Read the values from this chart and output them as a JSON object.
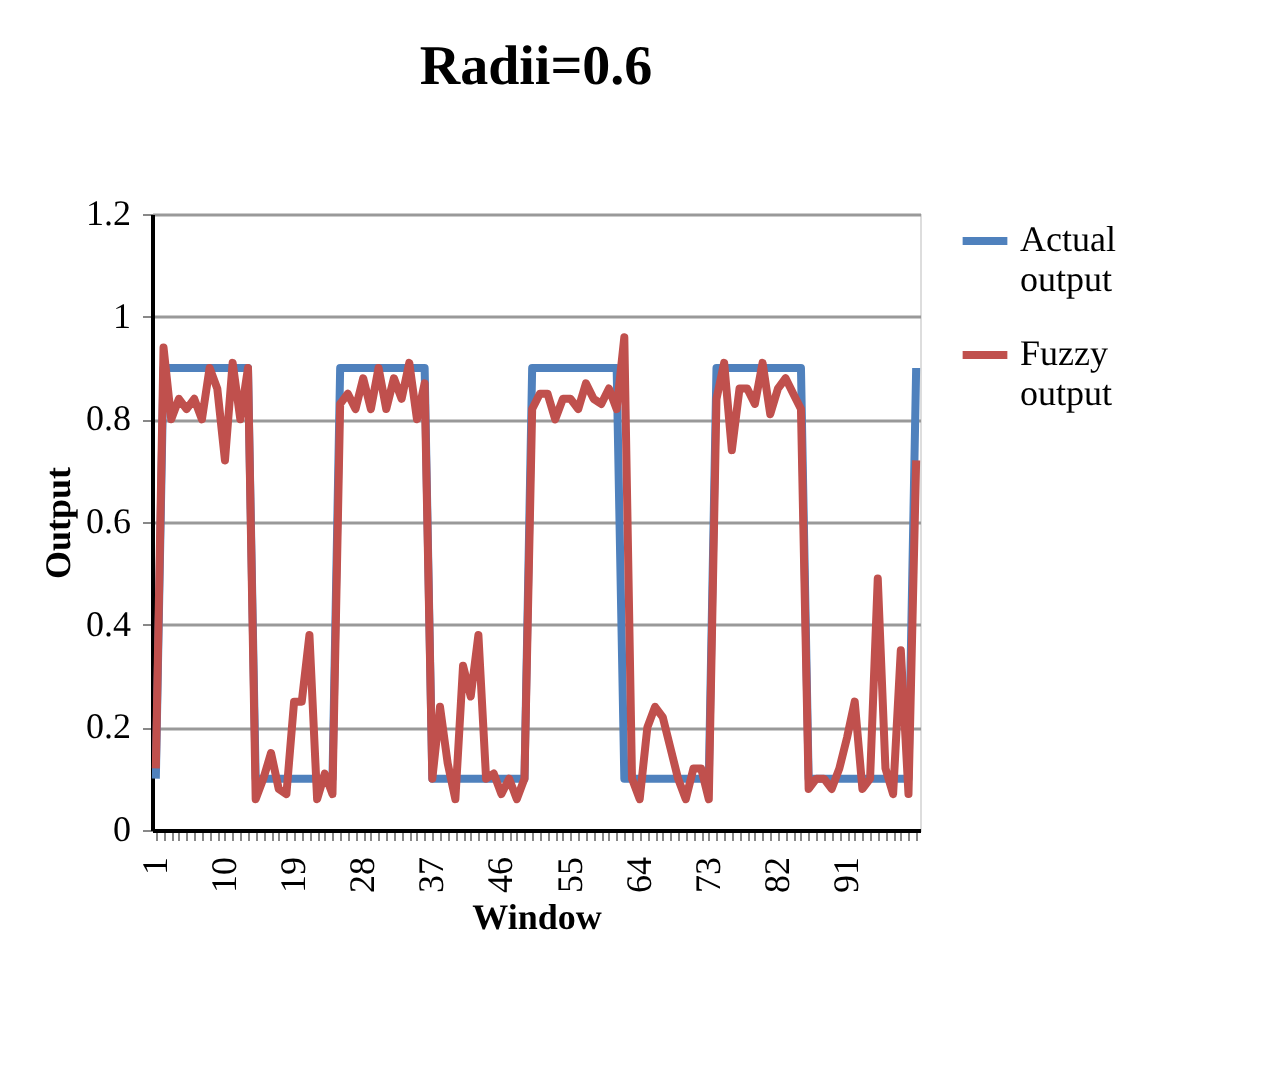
{
  "chart_data": {
    "type": "line",
    "title": "Radii=0.6",
    "xlabel": "Window",
    "ylabel": "Output",
    "categories": [
      "1",
      null,
      null,
      null,
      null,
      null,
      null,
      null,
      null,
      "10",
      null,
      null,
      null,
      null,
      null,
      null,
      null,
      null,
      "19",
      null,
      null,
      null,
      null,
      null,
      null,
      null,
      null,
      "28",
      null,
      null,
      null,
      null,
      null,
      null,
      null,
      null,
      "37",
      null,
      null,
      null,
      null,
      null,
      null,
      null,
      null,
      "46",
      null,
      null,
      null,
      null,
      null,
      null,
      null,
      null,
      "55",
      null,
      null,
      null,
      null,
      null,
      null,
      null,
      null,
      "64",
      null,
      null,
      null,
      null,
      null,
      null,
      null,
      null,
      "73",
      null,
      null,
      null,
      null,
      null,
      null,
      null,
      null,
      "82",
      null,
      null,
      null,
      null,
      null,
      null,
      null,
      null,
      "91",
      null,
      null,
      null,
      null,
      null,
      null,
      null,
      null,
      null
    ],
    "series": [
      {
        "name": "Actual output",
        "color": "#4f81bd",
        "values": [
          0.1,
          0.9,
          0.9,
          0.9,
          0.9,
          0.9,
          0.9,
          0.9,
          0.9,
          0.9,
          0.9,
          0.9,
          0.9,
          0.1,
          0.1,
          0.1,
          0.1,
          0.1,
          0.1,
          0.1,
          0.1,
          0.1,
          0.1,
          0.1,
          0.9,
          0.9,
          0.9,
          0.9,
          0.9,
          0.9,
          0.9,
          0.9,
          0.9,
          0.9,
          0.9,
          0.9,
          0.1,
          0.1,
          0.1,
          0.1,
          0.1,
          0.1,
          0.1,
          0.1,
          0.1,
          0.1,
          0.1,
          0.1,
          0.1,
          0.9,
          0.9,
          0.9,
          0.9,
          0.9,
          0.9,
          0.9,
          0.9,
          0.9,
          0.9,
          0.9,
          0.9,
          0.1,
          0.1,
          0.1,
          0.1,
          0.1,
          0.1,
          0.1,
          0.1,
          0.1,
          0.1,
          0.1,
          0.1,
          0.9,
          0.9,
          0.9,
          0.9,
          0.9,
          0.9,
          0.9,
          0.9,
          0.9,
          0.9,
          0.9,
          0.9,
          0.1,
          0.1,
          0.1,
          0.1,
          0.1,
          0.1,
          0.1,
          0.1,
          0.1,
          0.1,
          0.1,
          0.1,
          0.1,
          0.1,
          0.9
        ]
      },
      {
        "name": "Fuzzy output",
        "color": "#c0504d",
        "values": [
          0.12,
          0.94,
          0.8,
          0.84,
          0.82,
          0.84,
          0.8,
          0.9,
          0.86,
          0.72,
          0.91,
          0.8,
          0.9,
          0.06,
          0.1,
          0.15,
          0.08,
          0.07,
          0.25,
          0.25,
          0.38,
          0.06,
          0.11,
          0.07,
          0.83,
          0.85,
          0.82,
          0.88,
          0.82,
          0.9,
          0.82,
          0.88,
          0.84,
          0.91,
          0.8,
          0.87,
          0.1,
          0.24,
          0.13,
          0.06,
          0.32,
          0.26,
          0.38,
          0.1,
          0.11,
          0.07,
          0.1,
          0.06,
          0.1,
          0.82,
          0.85,
          0.85,
          0.8,
          0.84,
          0.84,
          0.82,
          0.87,
          0.84,
          0.83,
          0.86,
          0.82,
          0.96,
          0.1,
          0.06,
          0.2,
          0.24,
          0.22,
          0.16,
          0.1,
          0.06,
          0.12,
          0.12,
          0.06,
          0.84,
          0.91,
          0.74,
          0.86,
          0.86,
          0.83,
          0.91,
          0.81,
          0.86,
          0.88,
          0.85,
          0.82,
          0.08,
          0.1,
          0.1,
          0.08,
          0.12,
          0.18,
          0.25,
          0.08,
          0.1,
          0.49,
          0.12,
          0.07,
          0.35,
          0.07,
          0.72
        ]
      }
    ],
    "ylim": [
      0,
      1.2
    ],
    "yticks": [
      0,
      0.2,
      0.4,
      0.6,
      0.8,
      1,
      1.2
    ],
    "grid": "y",
    "legend": "right",
    "line_style": "solid",
    "marker": "none"
  }
}
